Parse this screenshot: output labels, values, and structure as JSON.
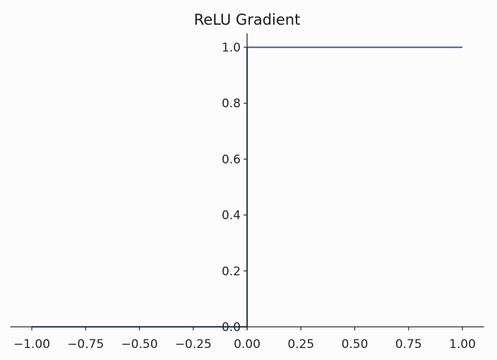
{
  "chart_data": {
    "type": "line",
    "title": "ReLU Gradient",
    "xlabel": "",
    "ylabel": "",
    "xlim": [
      -1.1,
      1.1
    ],
    "ylim": [
      -0.01,
      1.05
    ],
    "xticks": [
      -1.0,
      -0.75,
      -0.5,
      -0.25,
      0.0,
      0.25,
      0.5,
      0.75,
      1.0
    ],
    "xtick_labels": [
      "−1.00",
      "−0.75",
      "−0.50",
      "−0.25",
      "0.00",
      "0.25",
      "0.50",
      "0.75",
      "1.00"
    ],
    "yticks": [
      0.0,
      0.2,
      0.4,
      0.6,
      0.8,
      1.0
    ],
    "ytick_labels": [
      "0.0",
      "0.2",
      "0.4",
      "0.6",
      "0.8",
      "1.0"
    ],
    "grid": false,
    "spines": "centered-at-origin",
    "series": [
      {
        "color": "#4c72b0",
        "x": [
          -1.0,
          0.0,
          0.0,
          1.0
        ],
        "y": [
          0.0,
          0.0,
          1.0,
          1.0
        ]
      }
    ]
  }
}
